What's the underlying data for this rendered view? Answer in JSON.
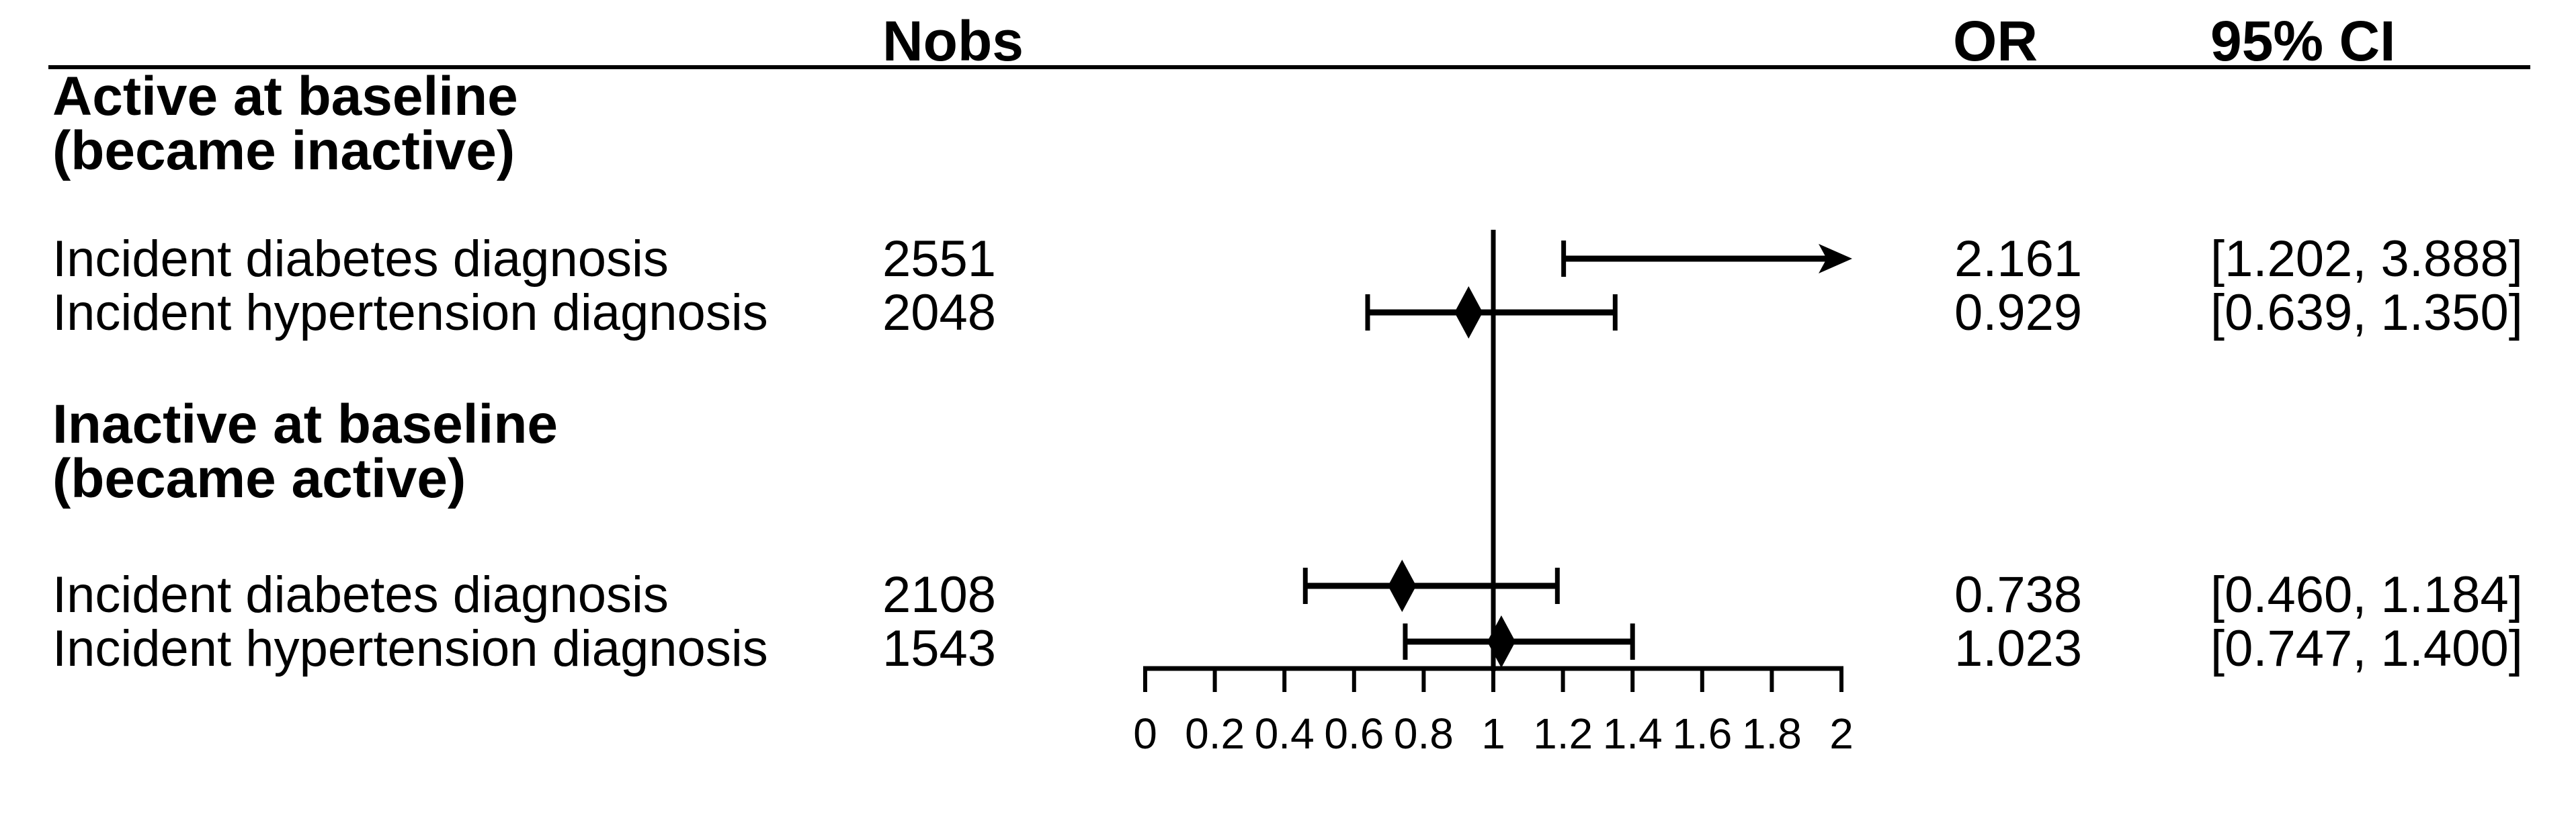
{
  "figure": {
    "kind": "forest plot",
    "background": "#ffffff"
  },
  "colors": {
    "ink": "#000000",
    "background": "#ffffff"
  },
  "table": {
    "columns": {
      "nobs": "Nobs",
      "or": "OR",
      "ci": "95% CI"
    },
    "groups": [
      {
        "header_line1": "Active at baseline",
        "header_line2": "(became inactive)",
        "rows": [
          {
            "label": "Incident diabetes diagnosis",
            "nobs": "2551",
            "or": "2.161",
            "ci": "[1.202, 3.888]"
          },
          {
            "label": "Incident hypertension diagnosis",
            "nobs": "2048",
            "or": "0.929",
            "ci": "[0.639, 1.350]"
          }
        ]
      },
      {
        "header_line1": "Inactive at baseline",
        "header_line2": "(became active)",
        "rows": [
          {
            "label": "Incident diabetes diagnosis",
            "nobs": "2108",
            "or": "0.738",
            "ci": "[0.460, 1.184]"
          },
          {
            "label": "Incident hypertension diagnosis",
            "nobs": "1543",
            "or": "1.023",
            "ci": "[0.747, 1.400]"
          }
        ]
      }
    ]
  },
  "chart_data": {
    "type": "scatter",
    "subtype": "forest-plot",
    "title": "",
    "xlabel": "",
    "ylabel": "",
    "axis": {
      "min": 0,
      "max": 2,
      "ticks": [
        0,
        0.2,
        0.4,
        0.6,
        0.8,
        1,
        1.2,
        1.4,
        1.6,
        1.8,
        2
      ],
      "tick_labels": [
        "0",
        "0.2",
        "0.4",
        "0.6",
        "0.8",
        "1",
        "1.2",
        "1.4",
        "1.6",
        "1.8",
        "2"
      ],
      "reference_line": 1,
      "grid": false
    },
    "series": [
      {
        "group": "Active at baseline (became inactive)",
        "label": "Incident diabetes diagnosis",
        "nobs": 2551,
        "or": 2.161,
        "ci_low": 1.202,
        "ci_high": 3.888,
        "ci_exceeds_axis": true
      },
      {
        "group": "Active at baseline (became inactive)",
        "label": "Incident hypertension diagnosis",
        "nobs": 2048,
        "or": 0.929,
        "ci_low": 0.639,
        "ci_high": 1.35,
        "ci_exceeds_axis": false
      },
      {
        "group": "Inactive at baseline (became active)",
        "label": "Incident diabetes diagnosis",
        "nobs": 2108,
        "or": 0.738,
        "ci_low": 0.46,
        "ci_high": 1.184,
        "ci_exceeds_axis": false
      },
      {
        "group": "Inactive at baseline (became active)",
        "label": "Incident hypertension diagnosis",
        "nobs": 1543,
        "or": 1.023,
        "ci_low": 0.747,
        "ci_high": 1.4,
        "ci_exceeds_axis": false
      }
    ]
  }
}
